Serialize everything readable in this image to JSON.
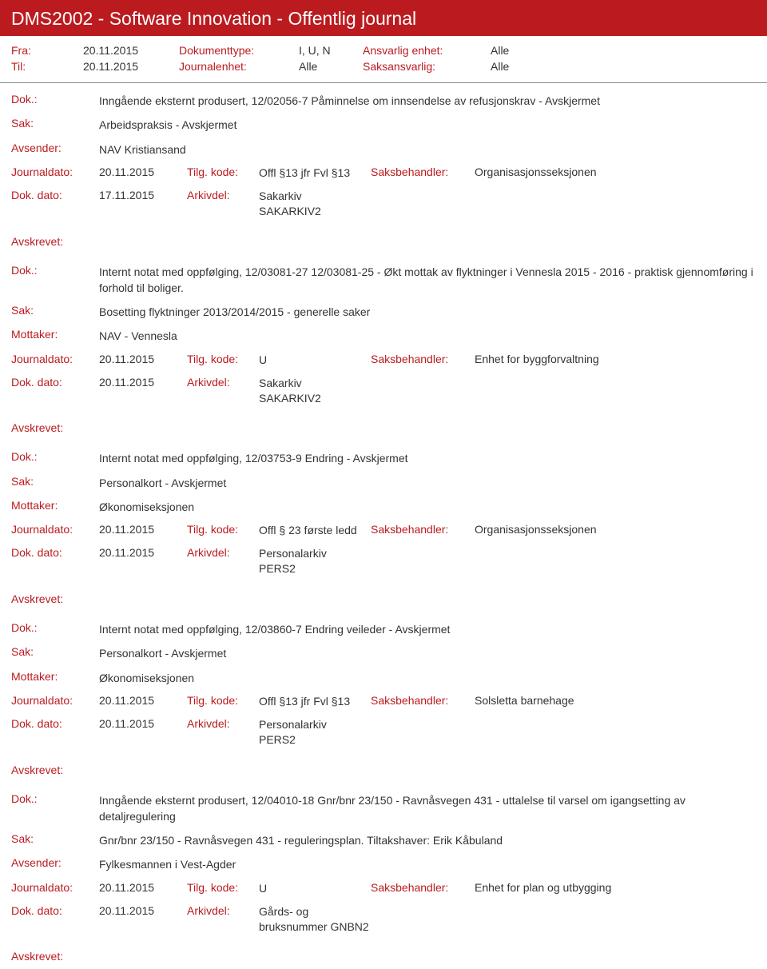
{
  "header": {
    "title": "DMS2002 - Software Innovation - Offentlig journal"
  },
  "meta": {
    "fra_label": "Fra:",
    "fra_val": "20.11.2015",
    "til_label": "Til:",
    "til_val": "20.11.2015",
    "doktype_label": "Dokumenttype:",
    "doktype_val": "I, U, N",
    "journalenhet_label": "Journalenhet:",
    "journalenhet_val": "Alle",
    "ansvarlig_label": "Ansvarlig enhet:",
    "ansvarlig_val": "Alle",
    "saksansvarlig_label": "Saksansvarlig:",
    "saksansvarlig_val": "Alle"
  },
  "labels": {
    "dok": "Dok.:",
    "sak": "Sak:",
    "avsender": "Avsender:",
    "mottaker": "Mottaker:",
    "journaldato": "Journaldato:",
    "tilgkode": "Tilg. kode:",
    "saksbehandler": "Saksbehandler:",
    "dokdato": "Dok. dato:",
    "arkivdel": "Arkivdel:",
    "avskrevet": "Avskrevet:"
  },
  "entries": [
    {
      "dok": "Inngående eksternt produsert, 12/02056-7 Påminnelse om innsendelse av refusjonskrav - Avskjermet",
      "sak": "Arbeidspraksis - Avskjermet",
      "party_label": "Avsender:",
      "party": "NAV Kristiansand",
      "journaldato": "20.11.2015",
      "tilgkode": "Offl §13 jfr Fvl §13",
      "saksbehandler": "Organisasjonsseksjonen",
      "dokdato": "17.11.2015",
      "arkivdel": "Sakarkiv\nSAKARKIV2"
    },
    {
      "dok": "Internt notat med oppfølging, 12/03081-27 12/03081-25 - Økt mottak av flyktninger i Vennesla 2015 - 2016 - praktisk gjennomføring i forhold til boliger.",
      "sak": "Bosetting flyktninger 2013/2014/2015 - generelle saker",
      "party_label": "Mottaker:",
      "party": "NAV - Vennesla",
      "journaldato": "20.11.2015",
      "tilgkode": "U",
      "saksbehandler": "Enhet for byggforvaltning",
      "dokdato": "20.11.2015",
      "arkivdel": "Sakarkiv\nSAKARKIV2"
    },
    {
      "dok": "Internt notat med oppfølging, 12/03753-9 Endring - Avskjermet",
      "sak": "Personalkort - Avskjermet",
      "party_label": "Mottaker:",
      "party": "Økonomiseksjonen",
      "journaldato": "20.11.2015",
      "tilgkode": "Offl § 23 første ledd",
      "saksbehandler": "Organisasjonsseksjonen",
      "dokdato": "20.11.2015",
      "arkivdel": "Personalarkiv\nPERS2"
    },
    {
      "dok": "Internt notat med oppfølging, 12/03860-7 Endring veileder - Avskjermet",
      "sak": "Personalkort - Avskjermet",
      "party_label": "Mottaker:",
      "party": "Økonomiseksjonen",
      "journaldato": "20.11.2015",
      "tilgkode": "Offl §13 jfr Fvl §13",
      "saksbehandler": "Solsletta barnehage",
      "dokdato": "20.11.2015",
      "arkivdel": "Personalarkiv\nPERS2"
    },
    {
      "dok": "Inngående eksternt produsert, 12/04010-18 Gnr/bnr 23/150 - Ravnåsvegen 431 - uttalelse til varsel om igangsetting av detaljregulering",
      "sak": "Gnr/bnr 23/150 - Ravnåsvegen 431 - reguleringsplan. Tiltakshaver: Erik Kåbuland",
      "party_label": "Avsender:",
      "party": "Fylkesmannen i Vest-Agder",
      "journaldato": "20.11.2015",
      "tilgkode": "U",
      "saksbehandler": "Enhet for plan og utbygging",
      "dokdato": "20.11.2015",
      "arkivdel": "Gårds- og bruksnummer GNBN2"
    }
  ]
}
